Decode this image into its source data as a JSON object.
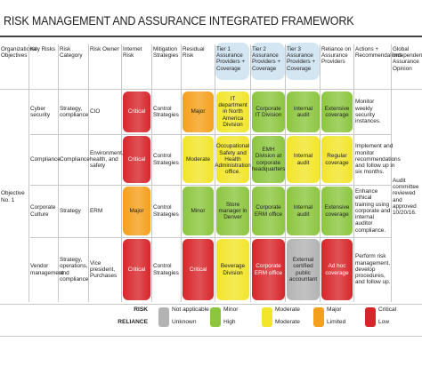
{
  "title": "RISK MANAGEMENT AND ASSURANCE INTEGRATED FRAMEWORK",
  "table": {
    "headers": [
      "Organizational Objectives",
      "Key Risks",
      "Risk Category",
      "Risk Owner",
      "Internet Risk",
      "Mitigation Strategies",
      "Residual Risk",
      "Tier 1 Assurance Providers + Coverage",
      "Tier 2 Assurance Providers + Coverage",
      "Tier 3 Assurance Providers + Coverage",
      "Reliance on Assurance Providers",
      "Actions + Recommendations",
      "Global Independent Assurance Opinion"
    ],
    "objective": "Objective No. 1",
    "opinion": "Audit committee reviewed and approved 10/20/16.",
    "rows": [
      [
        "Cyber security",
        "Strategy, compliance",
        "CIO",
        {
          "text": "Critical",
          "color": "#d7262b"
        },
        "Control Strategies",
        {
          "text": "Major",
          "color": "#f5a01c"
        },
        {
          "text": "IT department in North America Division",
          "color": "#f2e52a"
        },
        {
          "text": "Corporate IT Division",
          "color": "#8cc63f"
        },
        {
          "text": "Internal audit",
          "color": "#8cc63f"
        },
        {
          "text": "Extensive coverage",
          "color": "#8cc63f"
        },
        "Monitor weekly security instances."
      ],
      [
        "Compliance",
        "Compliance",
        "Environment, health, and safety",
        {
          "text": "Critical",
          "color": "#d7262b"
        },
        "Control Strategies",
        {
          "text": "Moderate",
          "color": "#f2e52a"
        },
        {
          "text": "Occupational Safety and Health Administration office.",
          "color": "#f2e52a"
        },
        {
          "text": "EMH Division at corporate headquarters",
          "color": "#8cc63f"
        },
        {
          "text": "Internal audit",
          "color": "#f2e52a"
        },
        {
          "text": "Regular coverage",
          "color": "#f2e52a"
        },
        "Implement and monitor recommendations and follow up in six months."
      ],
      [
        "Corporate Culture",
        "Strategy",
        "ERM",
        {
          "text": "Major",
          "color": "#f5a01c"
        },
        "Control Strategies",
        {
          "text": "Minor",
          "color": "#8cc63f"
        },
        {
          "text": "Store manager in Denver",
          "color": "#8cc63f"
        },
        {
          "text": "Corporate ERM office",
          "color": "#8cc63f"
        },
        {
          "text": "Internal audit",
          "color": "#8cc63f"
        },
        {
          "text": "Extensive coverage",
          "color": "#8cc63f"
        },
        "Enhance ethical training using corporate and internal auditor compliance."
      ],
      [
        "Vendor management",
        "Strategy, operations, and compliance",
        "Vice president, Purchases",
        {
          "text": "Critical",
          "color": "#d7262b"
        },
        "Control Strategies",
        {
          "text": "Critical",
          "color": "#d7262b"
        },
        {
          "text": "Beverage Division",
          "color": "#f2e52a"
        },
        {
          "text": "Corporate ERM office",
          "color": "#d7262b"
        },
        {
          "text": "External certified public accountant",
          "color": "#b3b3b3"
        },
        {
          "text": "Ad hoc coverage",
          "color": "#d7262b"
        },
        "Perform risk management, develop procedures, and follow up."
      ]
    ]
  },
  "legend": {
    "risk_label": "RISK",
    "reliance_label": "RELIANCE",
    "items": [
      {
        "risk": "Not applicable",
        "reliance": "Unknown",
        "color": "#b3b3b3"
      },
      {
        "risk": "Minor",
        "reliance": "High",
        "color": "#8cc63f"
      },
      {
        "risk": "Moderate",
        "reliance": "Moderate",
        "color": "#f2e52a"
      },
      {
        "risk": "Major",
        "reliance": "Limited",
        "color": "#f5a01c"
      },
      {
        "risk": "Critical",
        "reliance": "Low",
        "color": "#d7262b"
      }
    ]
  }
}
